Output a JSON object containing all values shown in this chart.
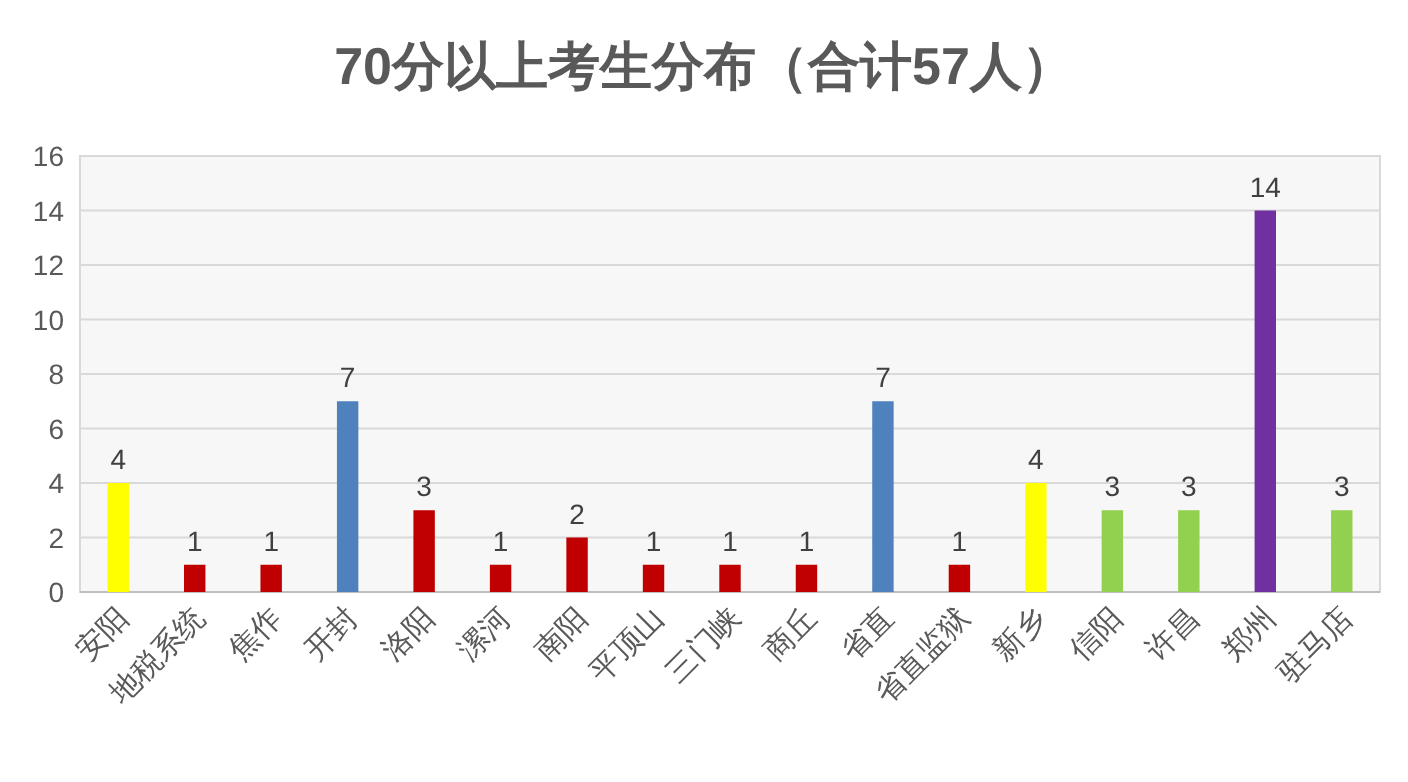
{
  "chart_data": {
    "type": "bar",
    "title": "70分以上考生分布（合计57人）",
    "categories": [
      "安阳",
      "地税系统",
      "焦作",
      "开封",
      "洛阳",
      "漯河",
      "南阳",
      "平顶山",
      "三门峡",
      "商丘",
      "省直",
      "省直监狱",
      "新乡",
      "信阳",
      "许昌",
      "郑州",
      "驻马店"
    ],
    "values": [
      4,
      1,
      1,
      7,
      3,
      1,
      2,
      1,
      1,
      1,
      7,
      1,
      4,
      3,
      3,
      14,
      3
    ],
    "colors": [
      "#ffff00",
      "#c00000",
      "#c00000",
      "#4f81bd",
      "#c00000",
      "#c00000",
      "#c00000",
      "#c00000",
      "#c00000",
      "#c00000",
      "#4f81bd",
      "#c00000",
      "#ffff00",
      "#92d050",
      "#92d050",
      "#7030a0",
      "#92d050"
    ],
    "ylim": [
      0,
      16
    ],
    "yticks": [
      0,
      2,
      4,
      6,
      8,
      10,
      12,
      14,
      16
    ],
    "grid": "y",
    "data_labels": true
  }
}
